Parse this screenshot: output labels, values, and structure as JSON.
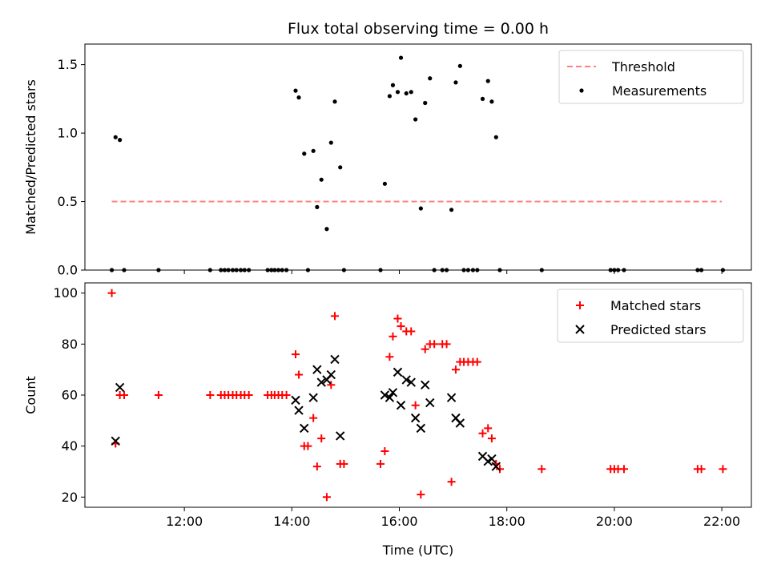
{
  "chart_data": [
    {
      "type": "scatter",
      "title": "Flux total observing time = 0.00 h",
      "xlabel": "",
      "ylabel": "Matched/Predicted stars",
      "x_unit": "hours UTC",
      "xlim": [
        10.15,
        22.55
      ],
      "ylim": [
        0.0,
        1.65
      ],
      "yticks": [
        0.0,
        0.5,
        1.0,
        1.5
      ],
      "ytick_labels": [
        "0.0",
        "0.5",
        "1.0",
        "1.5"
      ],
      "xticks": [
        12,
        14,
        16,
        18,
        20,
        22
      ],
      "show_x_tick_labels": false,
      "legend_position": "top-right",
      "series": [
        {
          "name": "Threshold",
          "kind": "dashed-line",
          "color": "#ff7f7f",
          "x": [
            10.65,
            22.0
          ],
          "y": [
            0.5,
            0.5
          ]
        },
        {
          "name": "Measurements",
          "kind": "dot",
          "color": "#000000",
          "points": [
            [
              10.65,
              0.0
            ],
            [
              10.72,
              0.97
            ],
            [
              10.8,
              0.95
            ],
            [
              10.88,
              0.0
            ],
            [
              11.52,
              0.0
            ],
            [
              12.48,
              0.0
            ],
            [
              12.68,
              0.0
            ],
            [
              12.75,
              0.0
            ],
            [
              12.82,
              0.0
            ],
            [
              12.9,
              0.0
            ],
            [
              12.97,
              0.0
            ],
            [
              13.05,
              0.0
            ],
            [
              13.12,
              0.0
            ],
            [
              13.2,
              0.0
            ],
            [
              13.55,
              0.0
            ],
            [
              13.62,
              0.0
            ],
            [
              13.68,
              0.0
            ],
            [
              13.75,
              0.0
            ],
            [
              13.82,
              0.0
            ],
            [
              13.9,
              0.0
            ],
            [
              14.07,
              1.31
            ],
            [
              14.13,
              1.26
            ],
            [
              14.23,
              0.85
            ],
            [
              14.3,
              0.0
            ],
            [
              14.4,
              0.87
            ],
            [
              14.47,
              0.46
            ],
            [
              14.55,
              0.66
            ],
            [
              14.65,
              0.3
            ],
            [
              14.73,
              0.93
            ],
            [
              14.8,
              1.23
            ],
            [
              14.9,
              0.75
            ],
            [
              14.97,
              0.0
            ],
            [
              15.65,
              0.0
            ],
            [
              15.73,
              0.63
            ],
            [
              15.82,
              1.27
            ],
            [
              15.88,
              1.35
            ],
            [
              15.97,
              1.3
            ],
            [
              16.03,
              1.55
            ],
            [
              16.13,
              1.29
            ],
            [
              16.22,
              1.3
            ],
            [
              16.3,
              1.1
            ],
            [
              16.4,
              0.45
            ],
            [
              16.48,
              1.22
            ],
            [
              16.57,
              1.4
            ],
            [
              16.65,
              0.0
            ],
            [
              16.8,
              0.0
            ],
            [
              16.88,
              0.0
            ],
            [
              16.97,
              0.44
            ],
            [
              17.05,
              1.37
            ],
            [
              17.13,
              1.49
            ],
            [
              17.2,
              0.0
            ],
            [
              17.28,
              0.0
            ],
            [
              17.37,
              0.0
            ],
            [
              17.45,
              0.0
            ],
            [
              17.55,
              1.25
            ],
            [
              17.65,
              1.38
            ],
            [
              17.72,
              1.23
            ],
            [
              17.8,
              0.97
            ],
            [
              17.87,
              0.0
            ],
            [
              18.65,
              0.0
            ],
            [
              19.93,
              0.0
            ],
            [
              20.0,
              0.0
            ],
            [
              20.07,
              0.0
            ],
            [
              20.18,
              0.0
            ],
            [
              21.55,
              0.0
            ],
            [
              21.62,
              0.0
            ],
            [
              22.02,
              0.0
            ]
          ]
        }
      ]
    },
    {
      "type": "scatter",
      "title": "",
      "xlabel": "Time (UTC)",
      "ylabel": "Count",
      "x_unit": "hours UTC",
      "xlim": [
        10.15,
        22.55
      ],
      "ylim": [
        16,
        104
      ],
      "yticks": [
        20,
        40,
        60,
        80,
        100
      ],
      "ytick_labels": [
        "20",
        "40",
        "60",
        "80",
        "100"
      ],
      "xticks": [
        12,
        14,
        16,
        18,
        20,
        22
      ],
      "xtick_labels": [
        "12:00",
        "14:00",
        "16:00",
        "18:00",
        "20:00",
        "22:00"
      ],
      "legend_position": "top-right",
      "series": [
        {
          "name": "Matched stars",
          "kind": "plus",
          "color": "#ff0000",
          "points": [
            [
              10.65,
              100
            ],
            [
              10.72,
              41
            ],
            [
              10.8,
              60
            ],
            [
              10.88,
              60
            ],
            [
              11.52,
              60
            ],
            [
              12.48,
              60
            ],
            [
              12.68,
              60
            ],
            [
              12.75,
              60
            ],
            [
              12.82,
              60
            ],
            [
              12.9,
              60
            ],
            [
              12.97,
              60
            ],
            [
              13.05,
              60
            ],
            [
              13.12,
              60
            ],
            [
              13.2,
              60
            ],
            [
              13.55,
              60
            ],
            [
              13.62,
              60
            ],
            [
              13.68,
              60
            ],
            [
              13.75,
              60
            ],
            [
              13.82,
              60
            ],
            [
              13.9,
              60
            ],
            [
              14.07,
              76
            ],
            [
              14.13,
              68
            ],
            [
              14.23,
              40
            ],
            [
              14.3,
              40
            ],
            [
              14.4,
              51
            ],
            [
              14.47,
              32
            ],
            [
              14.55,
              43
            ],
            [
              14.65,
              20
            ],
            [
              14.73,
              64
            ],
            [
              14.8,
              91
            ],
            [
              14.9,
              33
            ],
            [
              14.97,
              33
            ],
            [
              15.65,
              33
            ],
            [
              15.73,
              38
            ],
            [
              15.82,
              75
            ],
            [
              15.88,
              83
            ],
            [
              15.97,
              90
            ],
            [
              16.03,
              87
            ],
            [
              16.13,
              85
            ],
            [
              16.22,
              85
            ],
            [
              16.3,
              56
            ],
            [
              16.4,
              21
            ],
            [
              16.48,
              78
            ],
            [
              16.57,
              80
            ],
            [
              16.65,
              80
            ],
            [
              16.8,
              80
            ],
            [
              16.88,
              80
            ],
            [
              16.97,
              26
            ],
            [
              17.05,
              70
            ],
            [
              17.13,
              73
            ],
            [
              17.2,
              73
            ],
            [
              17.28,
              73
            ],
            [
              17.37,
              73
            ],
            [
              17.45,
              73
            ],
            [
              17.55,
              45
            ],
            [
              17.65,
              47
            ],
            [
              17.72,
              43
            ],
            [
              17.8,
              33
            ],
            [
              17.87,
              31
            ],
            [
              18.65,
              31
            ],
            [
              19.93,
              31
            ],
            [
              20.0,
              31
            ],
            [
              20.07,
              31
            ],
            [
              20.18,
              31
            ],
            [
              21.55,
              31
            ],
            [
              21.62,
              31
            ],
            [
              22.02,
              31
            ]
          ]
        },
        {
          "name": "Predicted stars",
          "kind": "cross",
          "color": "#000000",
          "points": [
            [
              10.72,
              42
            ],
            [
              10.8,
              63
            ],
            [
              14.07,
              58
            ],
            [
              14.13,
              54
            ],
            [
              14.23,
              47
            ],
            [
              14.4,
              59
            ],
            [
              14.47,
              70
            ],
            [
              14.55,
              65
            ],
            [
              14.65,
              66
            ],
            [
              14.73,
              68
            ],
            [
              14.8,
              74
            ],
            [
              14.9,
              44
            ],
            [
              15.73,
              60
            ],
            [
              15.82,
              59
            ],
            [
              15.88,
              61
            ],
            [
              15.97,
              69
            ],
            [
              16.03,
              56
            ],
            [
              16.13,
              66
            ],
            [
              16.22,
              65
            ],
            [
              16.3,
              51
            ],
            [
              16.4,
              47
            ],
            [
              16.48,
              64
            ],
            [
              16.57,
              57
            ],
            [
              16.97,
              59
            ],
            [
              17.05,
              51
            ],
            [
              17.13,
              49
            ],
            [
              17.55,
              36
            ],
            [
              17.65,
              34
            ],
            [
              17.72,
              35
            ],
            [
              17.8,
              32
            ]
          ]
        }
      ]
    }
  ]
}
